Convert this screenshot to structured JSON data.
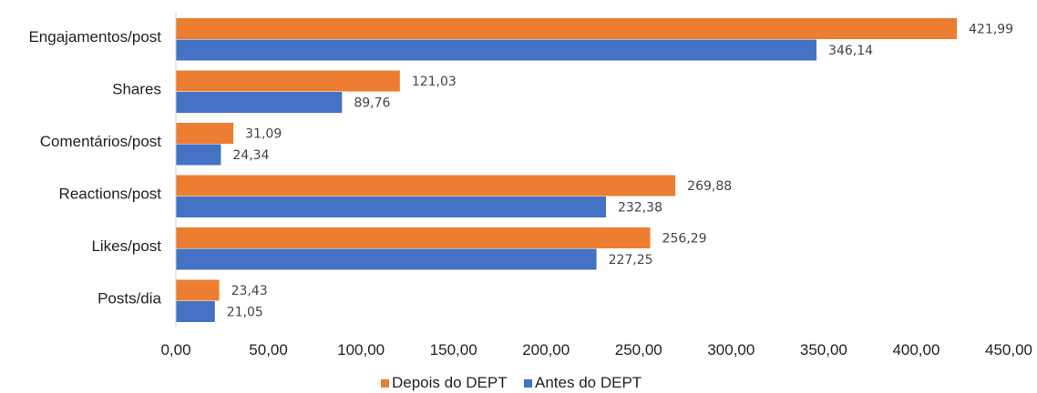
{
  "chart_data": {
    "type": "bar",
    "orientation": "horizontal",
    "categories": [
      "Engajamentos/post",
      "Shares",
      "Comentários/post",
      "Reactions/post",
      "Likes/post",
      "Posts/dia"
    ],
    "series": [
      {
        "name": "Depois do DEPT",
        "color": "#ED7D31",
        "values": [
          421.99,
          121.03,
          31.09,
          269.88,
          256.29,
          23.43
        ],
        "labels": [
          "421,99",
          "121,03",
          "31,09",
          "269,88",
          "256,29",
          "23,43"
        ]
      },
      {
        "name": "Antes do DEPT",
        "color": "#4472C4",
        "values": [
          346.14,
          89.76,
          24.34,
          232.38,
          227.25,
          21.05
        ],
        "labels": [
          "346,14",
          "89,76",
          "24,34",
          "232,38",
          "227,25",
          "21,05"
        ]
      }
    ],
    "xlim": [
      0,
      450
    ],
    "xticks": [
      0,
      50,
      100,
      150,
      200,
      250,
      300,
      350,
      400,
      450
    ],
    "xtick_labels": [
      "0,00",
      "50,00",
      "100,00",
      "150,00",
      "200,00",
      "250,00",
      "300,00",
      "350,00",
      "400,00",
      "450,00"
    ],
    "grid": false,
    "legend_position": "bottom"
  }
}
